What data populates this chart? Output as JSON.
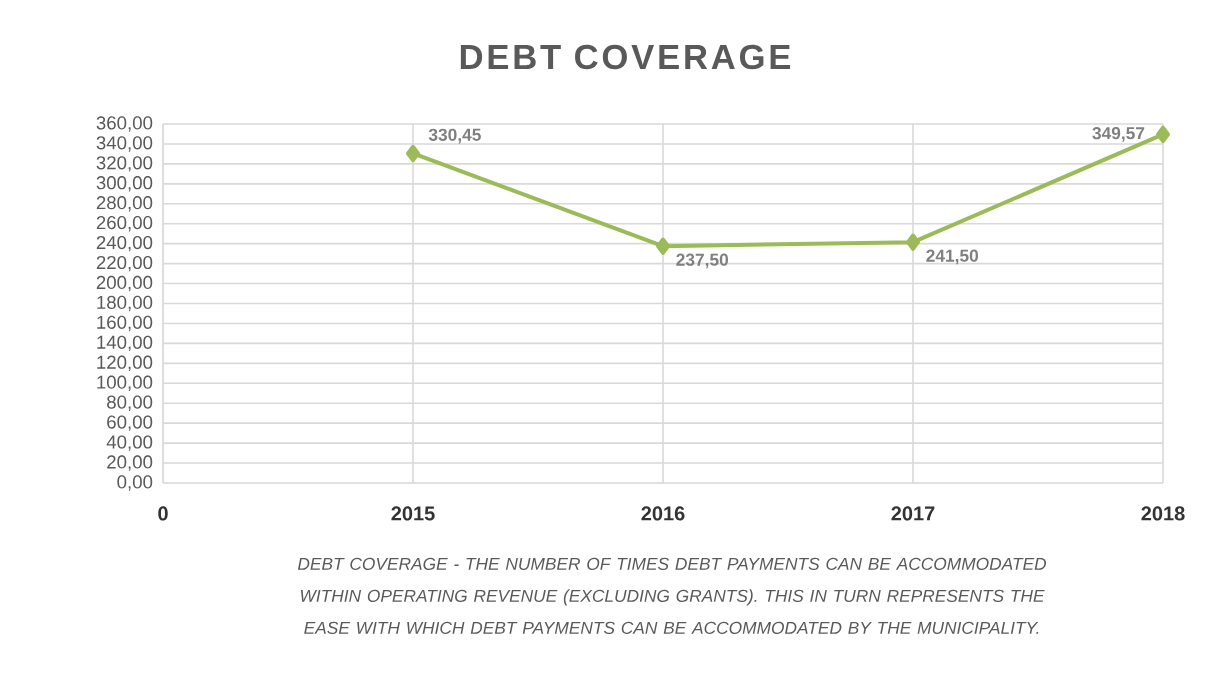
{
  "chart_data": {
    "type": "line",
    "title": "DEBT COVERAGE",
    "categories": [
      "0",
      "2015",
      "2016",
      "2017",
      "2018"
    ],
    "values": [
      null,
      330.45,
      237.5,
      241.5,
      349.57
    ],
    "value_labels": [
      null,
      "330,45",
      "237,50",
      "241,50",
      "349,57"
    ],
    "color": "#9bbb59",
    "marker": "diamond",
    "grid": true,
    "ylim": [
      0,
      360
    ],
    "yticks": [
      {
        "value": 0,
        "label": "0,00"
      },
      {
        "value": 20,
        "label": "20,00"
      },
      {
        "value": 40,
        "label": "40,00"
      },
      {
        "value": 60,
        "label": "60,00"
      },
      {
        "value": 80,
        "label": "80,00"
      },
      {
        "value": 100,
        "label": "100,00"
      },
      {
        "value": 120,
        "label": "120,00"
      },
      {
        "value": 140,
        "label": "140,00"
      },
      {
        "value": 160,
        "label": "160,00"
      },
      {
        "value": 180,
        "label": "180,00"
      },
      {
        "value": 200,
        "label": "200,00"
      },
      {
        "value": 220,
        "label": "220,00"
      },
      {
        "value": 240,
        "label": "240,00"
      },
      {
        "value": 260,
        "label": "260,00"
      },
      {
        "value": 280,
        "label": "280,00"
      },
      {
        "value": 300,
        "label": "300,00"
      },
      {
        "value": 320,
        "label": "320,00"
      },
      {
        "value": 340,
        "label": "340,00"
      },
      {
        "value": 360,
        "label": "360,00"
      }
    ],
    "annotations": [
      "DEBT COVERAGE - THE NUMBER OF TIMES DEBT PAYMENTS CAN BE ACCOMMODATED WITHIN OPERATING REVENUE (EXCLUDING GRANTS). THIS IN TURN REPRESENTS THE EASE WITH WHICH DEBT PAYMENTS CAN BE ACCOMMODATED BY THE MUNICIPALITY."
    ]
  }
}
